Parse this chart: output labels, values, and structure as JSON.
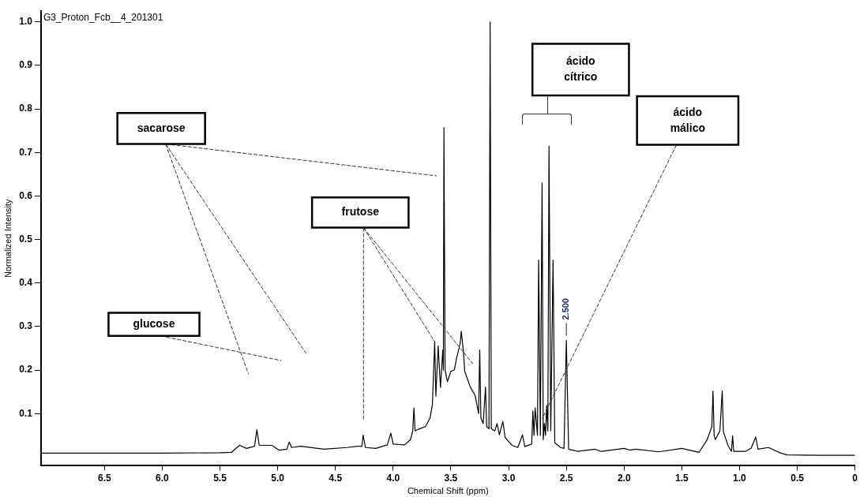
{
  "chart_data": {
    "type": "line",
    "title": "G3_Proton_Fcb__4_201301",
    "xlabel": "Chemical Shift (ppm)",
    "ylabel": "Normalized Intensity",
    "x": [
      7.05,
      6.5,
      6.0,
      5.5,
      5.4,
      5.33,
      5.27,
      5.2,
      5.18,
      5.16,
      5.05,
      4.99,
      4.92,
      4.9,
      4.88,
      4.8,
      4.6,
      4.4,
      4.3,
      4.27,
      4.26,
      4.24,
      4.15,
      4.05,
      4.02,
      4.0,
      3.9,
      3.85,
      3.83,
      3.82,
      3.81,
      3.78,
      3.72,
      3.68,
      3.66,
      3.64,
      3.63,
      3.61,
      3.59,
      3.57,
      3.565,
      3.56,
      3.55,
      3.53,
      3.5,
      3.47,
      3.45,
      3.42,
      3.41,
      3.39,
      3.38,
      3.33,
      3.29,
      3.26,
      3.25,
      3.24,
      3.22,
      3.2,
      3.19,
      3.17,
      3.16,
      3.15,
      3.12,
      3.1,
      3.08,
      3.05,
      3.03,
      2.97,
      2.92,
      2.88,
      2.86,
      2.8,
      2.79,
      2.78,
      2.77,
      2.75,
      2.74,
      2.725,
      2.71,
      2.7,
      2.69,
      2.68,
      2.67,
      2.66,
      2.65,
      2.635,
      2.615,
      2.6,
      2.55,
      2.52,
      2.5,
      2.48,
      2.4,
      2.25,
      2.2,
      2.0,
      1.95,
      1.9,
      1.7,
      1.5,
      1.35,
      1.28,
      1.24,
      1.23,
      1.22,
      1.21,
      1.17,
      1.15,
      1.14,
      1.1,
      1.07,
      1.06,
      1.05,
      0.95,
      0.9,
      0.86,
      0.84,
      0.75,
      0.65,
      0.59,
      0.3,
      0.0
    ],
    "series": [
      {
        "color": "#000000",
        "values": [
          0.009,
          0.009,
          0.009,
          0.01,
          0.011,
          0.027,
          0.02,
          0.025,
          0.063,
          0.027,
          0.027,
          0.016,
          0.018,
          0.035,
          0.022,
          0.025,
          0.018,
          0.022,
          0.025,
          0.025,
          0.051,
          0.022,
          0.02,
          0.028,
          0.055,
          0.03,
          0.028,
          0.04,
          0.06,
          0.113,
          0.06,
          0.064,
          0.07,
          0.09,
          0.12,
          0.265,
          0.14,
          0.255,
          0.16,
          0.246,
          0.2,
          0.757,
          0.2,
          0.173,
          0.197,
          0.2,
          0.228,
          0.26,
          0.289,
          0.24,
          0.197,
          0.16,
          0.142,
          0.1,
          0.246,
          0.09,
          0.077,
          0.161,
          0.07,
          0.065,
          1.0,
          0.065,
          0.06,
          0.077,
          0.051,
          0.082,
          0.045,
          0.027,
          0.022,
          0.051,
          0.024,
          0.03,
          0.106,
          0.05,
          0.113,
          0.05,
          0.453,
          0.05,
          0.63,
          0.04,
          0.077,
          0.05,
          0.119,
          0.06,
          0.715,
          0.06,
          0.453,
          0.033,
          0.022,
          0.02,
          0.268,
          0.018,
          0.013,
          0.018,
          0.013,
          0.02,
          0.016,
          0.018,
          0.012,
          0.02,
          0.011,
          0.04,
          0.07,
          0.152,
          0.05,
          0.04,
          0.06,
          0.152,
          0.058,
          0.027,
          0.013,
          0.049,
          0.013,
          0.013,
          0.02,
          0.046,
          0.018,
          0.022,
          0.01,
          0.005,
          0.004,
          0.004
        ]
      }
    ],
    "xlim": [
      7.05,
      0
    ],
    "xticks": [
      6.5,
      {
        "value": 6,
        "label": "6.0"
      },
      5.5,
      {
        "value": 5,
        "label": "5.0"
      },
      4.5,
      {
        "value": 4,
        "label": "4.0"
      },
      3.5,
      {
        "value": 3,
        "label": "3.0"
      },
      2.5,
      {
        "value": 2,
        "label": "2.0"
      },
      1.5,
      {
        "value": 1,
        "label": "1.0"
      },
      0.5,
      0
    ],
    "ylim": [
      -0.02,
      1.025
    ],
    "yticks": [
      0.1,
      0.2,
      0.3,
      0.4,
      0.5,
      0.6,
      0.7,
      0.8,
      0.9,
      {
        "value": 1,
        "label": "1.0"
      }
    ],
    "annotations": [
      "sacarose",
      {
        "text": "frutose",
        "x": 3.64,
        "y": 0.265
      },
      "glucose",
      "ácido cítrico",
      {
        "text": "ácido málico",
        "x": 2.71,
        "y": 0.088
      },
      {
        "text": "2.500",
        "x": 2.5,
        "y": 0.268
      }
    ],
    "grid": false,
    "legend": false,
    "marker": "none",
    "line_style": "solid"
  }
}
